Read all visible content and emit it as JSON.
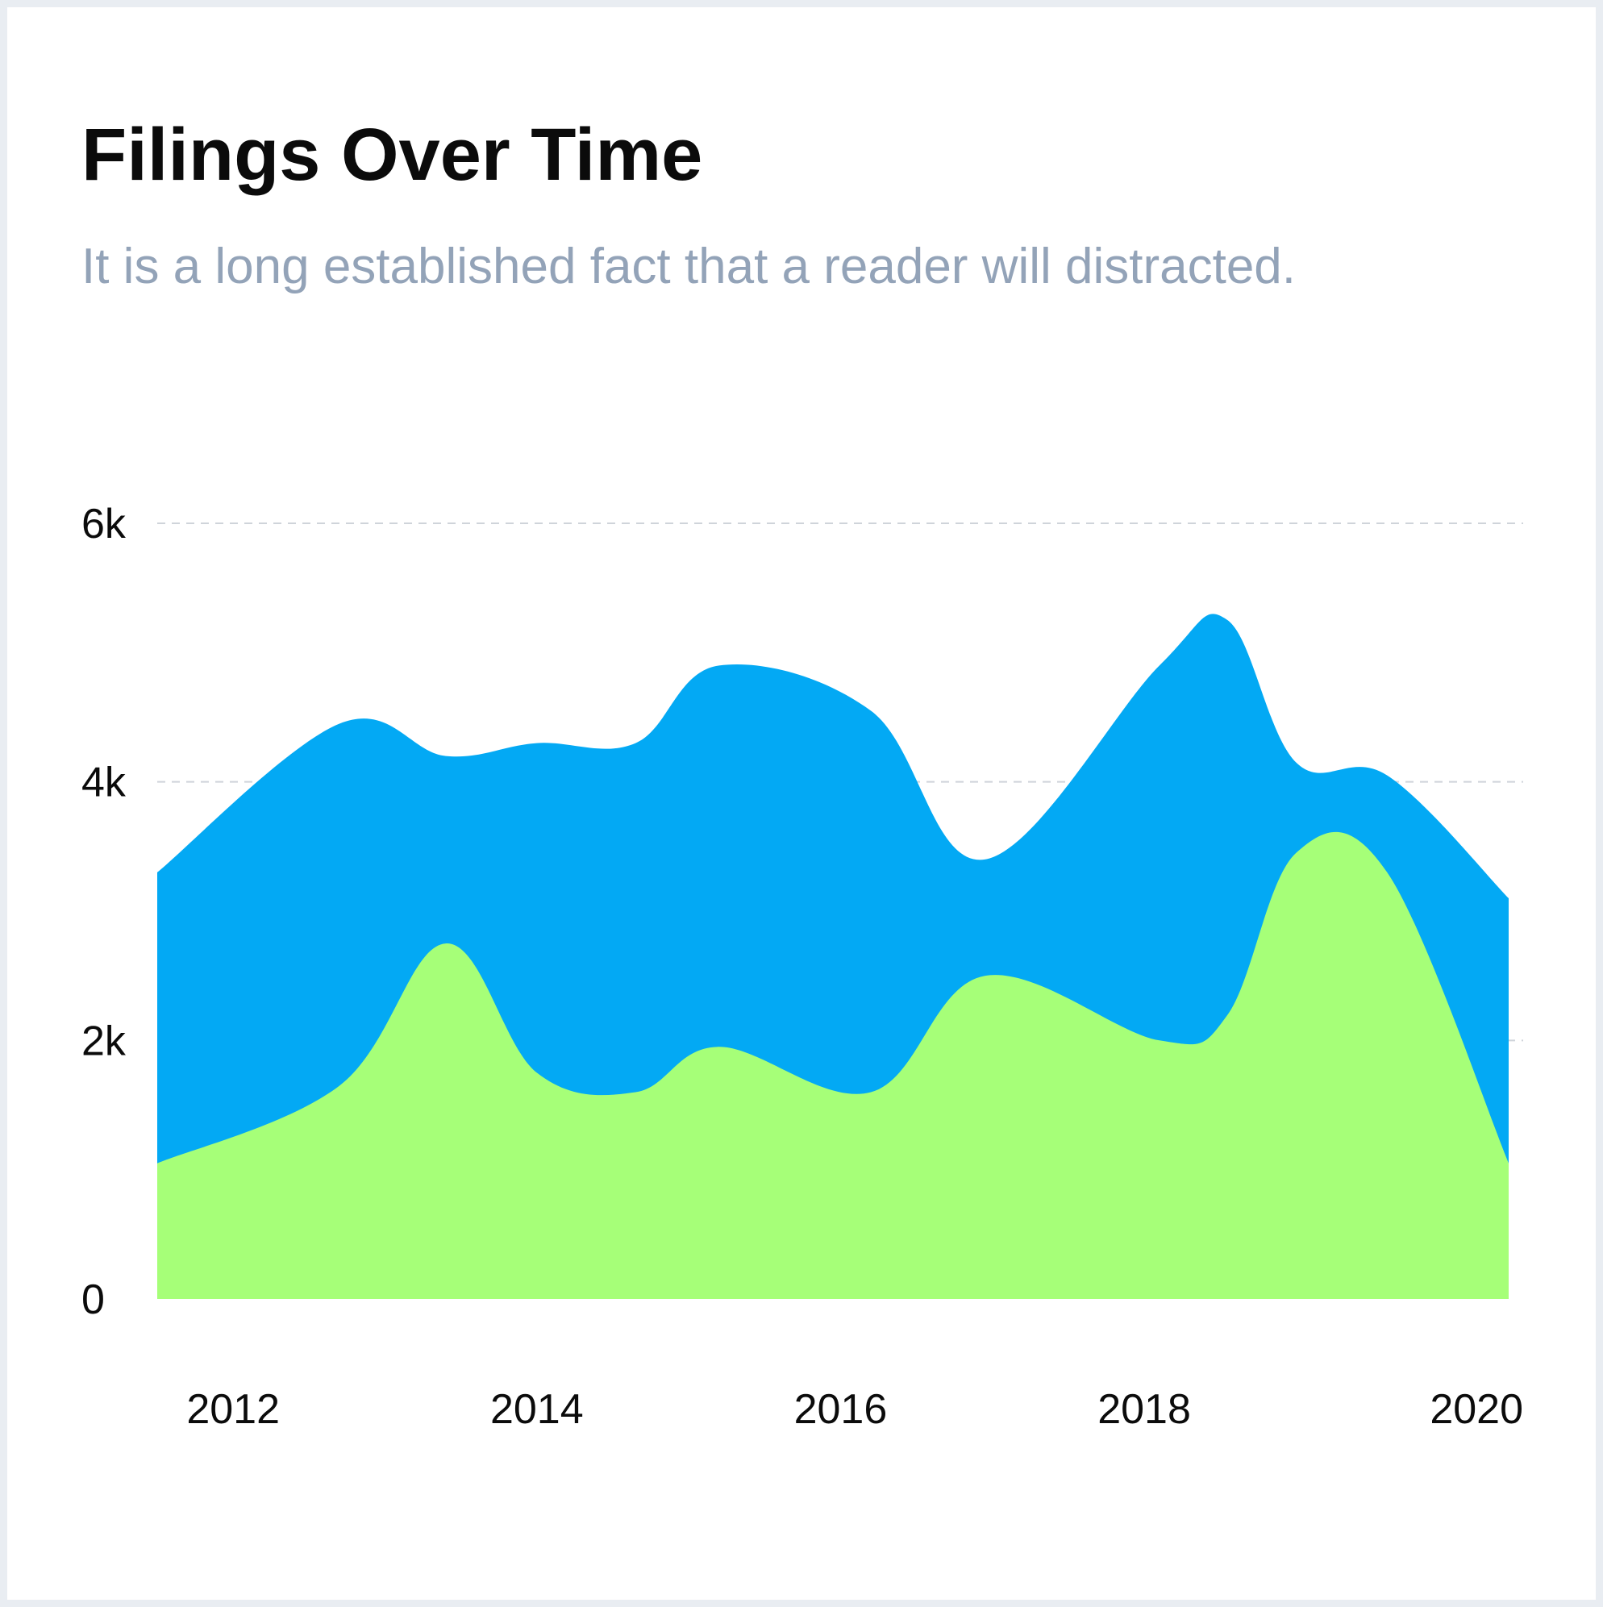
{
  "header": {
    "title": "Filings Over Time",
    "subtitle": "It is a long established fact that a reader will distracted."
  },
  "colors": {
    "page_background": "#e9edf2",
    "card_background": "#ffffff",
    "total_area": "#03a9f4",
    "lower_area": "#a6ff78",
    "grid": "#cfd4da",
    "title": "#0b0b0b",
    "subtitle": "#93a3b8"
  },
  "chart_data": {
    "type": "area",
    "stacked": false,
    "grid": "horizontal dashed",
    "legend": "none",
    "xlim": [
      2011.5,
      2020.4
    ],
    "ylim": [
      0,
      6000
    ],
    "x_ticks": [
      2012,
      2014,
      2016,
      2018,
      2020
    ],
    "x_tick_labels": [
      "2012",
      "2014",
      "2016",
      "2018",
      "2020"
    ],
    "y_ticks": [
      0,
      2000,
      4000,
      6000
    ],
    "y_tick_labels": [
      "0",
      "2k",
      "4k",
      "6k"
    ],
    "x": [
      2011.5,
      2012.7,
      2013.4,
      2014.0,
      2014.65,
      2015.2,
      2016.2,
      2016.95,
      2018.1,
      2018.55,
      2019.0,
      2019.6,
      2020.4
    ],
    "series": [
      {
        "values": [
          3300,
          4450,
          4200,
          4300,
          4300,
          4900,
          4550,
          3400,
          4900,
          5250,
          4150,
          4050,
          3100
        ]
      },
      {
        "values": [
          1050,
          1650,
          2750,
          1750,
          1600,
          1950,
          1600,
          2500,
          2000,
          2200,
          3450,
          3300,
          1050
        ]
      }
    ]
  }
}
